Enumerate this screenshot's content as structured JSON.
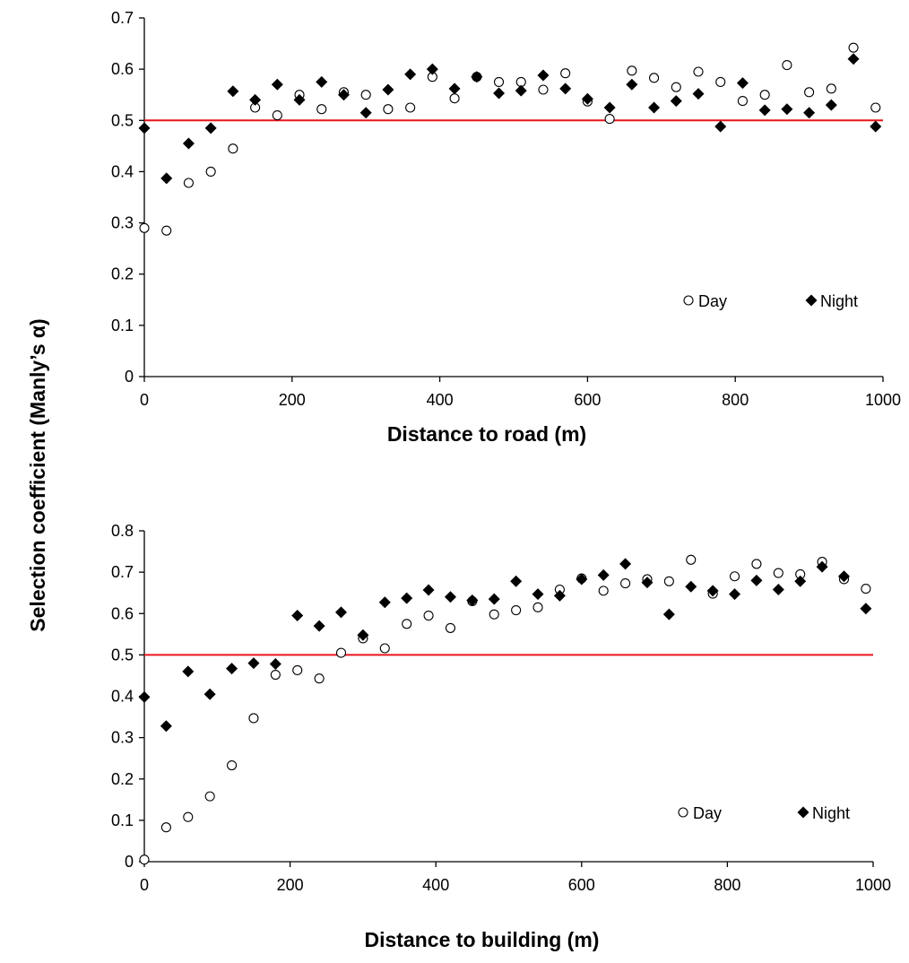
{
  "shared_ylabel": "Selection coefficient (Manly’s α)",
  "chart_data": [
    {
      "type": "scatter",
      "xlabel": "Distance to road (m)",
      "xlim": [
        0,
        1000
      ],
      "ylim": [
        0,
        0.7
      ],
      "xticks": [
        0,
        200,
        400,
        600,
        800,
        1000
      ],
      "yticks": [
        0,
        0.1,
        0.2,
        0.3,
        0.4,
        0.5,
        0.6,
        0.7
      ],
      "reference_line": {
        "y": 0.5,
        "color": "#e8141b"
      },
      "legend": {
        "position": "lower-right"
      },
      "grid": false,
      "series": [
        {
          "name": "Day",
          "marker": "open-circle",
          "x": [
            0,
            30,
            60,
            90,
            120,
            150,
            180,
            210,
            240,
            270,
            300,
            330,
            360,
            390,
            420,
            450,
            480,
            510,
            540,
            570,
            600,
            630,
            660,
            690,
            720,
            750,
            780,
            810,
            840,
            870,
            900,
            930,
            960,
            990
          ],
          "y": [
            0.29,
            0.285,
            0.378,
            0.4,
            0.445,
            0.525,
            0.51,
            0.55,
            0.522,
            0.555,
            0.55,
            0.522,
            0.525,
            0.585,
            0.543,
            0.585,
            0.575,
            0.575,
            0.56,
            0.592,
            0.537,
            0.503,
            0.597,
            0.583,
            0.565,
            0.595,
            0.575,
            0.538,
            0.55,
            0.608,
            0.555,
            0.562,
            0.642,
            0.525
          ]
        },
        {
          "name": "Night",
          "marker": "filled-diamond",
          "x": [
            0,
            30,
            60,
            90,
            120,
            150,
            180,
            210,
            240,
            270,
            300,
            330,
            360,
            390,
            420,
            450,
            480,
            510,
            540,
            570,
            600,
            630,
            660,
            690,
            720,
            750,
            780,
            810,
            840,
            870,
            900,
            930,
            960,
            990
          ],
          "y": [
            0.485,
            0.387,
            0.455,
            0.485,
            0.557,
            0.54,
            0.57,
            0.54,
            0.575,
            0.55,
            0.515,
            0.56,
            0.59,
            0.6,
            0.562,
            0.585,
            0.553,
            0.558,
            0.588,
            0.562,
            0.542,
            0.525,
            0.57,
            0.525,
            0.538,
            0.552,
            0.488,
            0.573,
            0.52,
            0.522,
            0.515,
            0.53,
            0.62,
            0.488
          ]
        }
      ]
    },
    {
      "type": "scatter",
      "xlabel": "Distance to building (m)",
      "xlim": [
        0,
        1000
      ],
      "ylim": [
        0,
        0.8
      ],
      "xticks": [
        0,
        200,
        400,
        600,
        800,
        1000
      ],
      "yticks": [
        0,
        0.1,
        0.2,
        0.3,
        0.4,
        0.5,
        0.6,
        0.7,
        0.8
      ],
      "reference_line": {
        "y": 0.5,
        "color": "#e8141b"
      },
      "legend": {
        "position": "lower-right"
      },
      "grid": false,
      "series": [
        {
          "name": "Day",
          "marker": "open-circle",
          "x": [
            0,
            30,
            60,
            90,
            120,
            150,
            180,
            210,
            240,
            270,
            300,
            330,
            360,
            390,
            420,
            450,
            480,
            510,
            540,
            570,
            600,
            630,
            660,
            690,
            720,
            750,
            780,
            810,
            840,
            870,
            900,
            930,
            960,
            990
          ],
          "y": [
            0.005,
            0.083,
            0.108,
            0.158,
            0.233,
            0.347,
            0.452,
            0.463,
            0.443,
            0.505,
            0.54,
            0.516,
            0.575,
            0.595,
            0.565,
            0.63,
            0.598,
            0.608,
            0.615,
            0.658,
            0.685,
            0.655,
            0.673,
            0.683,
            0.678,
            0.73,
            0.648,
            0.69,
            0.72,
            0.698,
            0.695,
            0.725,
            0.683,
            0.66
          ]
        },
        {
          "name": "Night",
          "marker": "filled-diamond",
          "x": [
            0,
            30,
            60,
            90,
            120,
            150,
            180,
            210,
            240,
            270,
            300,
            330,
            360,
            390,
            420,
            450,
            480,
            510,
            540,
            570,
            600,
            630,
            660,
            690,
            720,
            750,
            780,
            810,
            840,
            870,
            900,
            930,
            960,
            990
          ],
          "y": [
            0.398,
            0.328,
            0.46,
            0.405,
            0.467,
            0.48,
            0.478,
            0.595,
            0.57,
            0.603,
            0.548,
            0.627,
            0.637,
            0.657,
            0.64,
            0.632,
            0.635,
            0.678,
            0.647,
            0.643,
            0.683,
            0.693,
            0.72,
            0.675,
            0.598,
            0.665,
            0.655,
            0.647,
            0.68,
            0.658,
            0.678,
            0.713,
            0.69,
            0.612
          ]
        }
      ]
    }
  ]
}
